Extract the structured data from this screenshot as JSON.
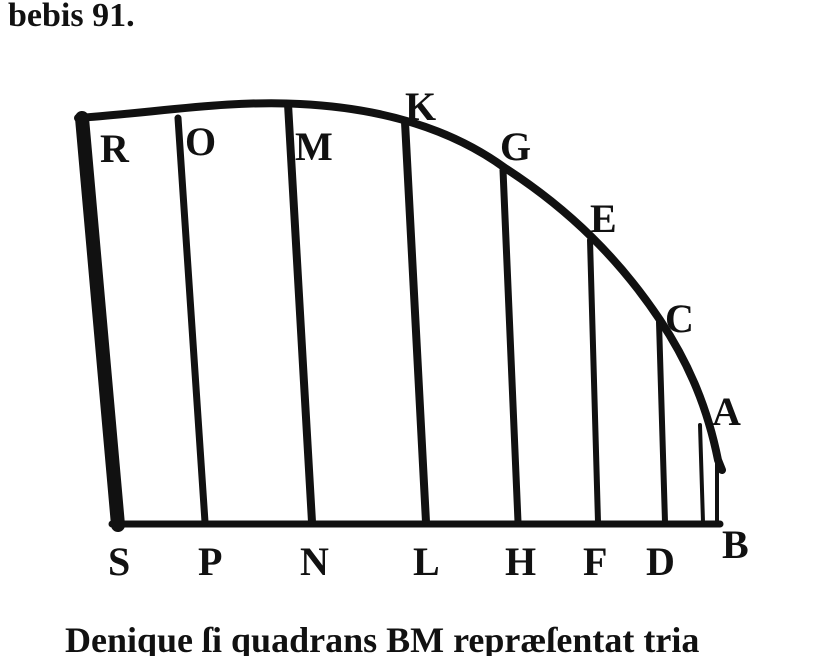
{
  "header": {
    "text": "bebis 91."
  },
  "figure": {
    "top_labels": [
      "R",
      "O",
      "M",
      "K",
      "G",
      "E",
      "C",
      "A",
      "B"
    ],
    "bottom_labels": [
      "S",
      "P",
      "N",
      "L",
      "H",
      "F",
      "D"
    ]
  },
  "caption": "Denique ſi quadrans  BM repræſentat tria"
}
